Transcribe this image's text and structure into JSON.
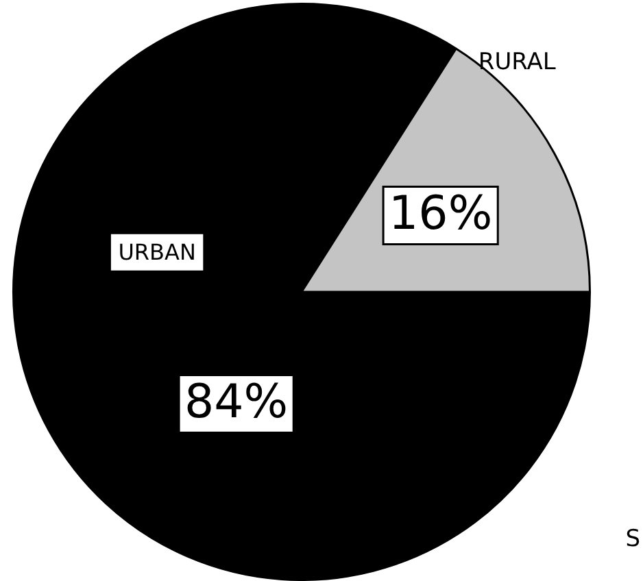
{
  "chart_data": {
    "type": "pie",
    "categories": [
      "URBAN",
      "RURAL"
    ],
    "values": [
      84,
      16
    ],
    "colors": [
      "#000000",
      "#c4c4c4"
    ],
    "value_labels": [
      "84%",
      "16%"
    ],
    "legend": false,
    "annotations": [
      "S"
    ]
  }
}
